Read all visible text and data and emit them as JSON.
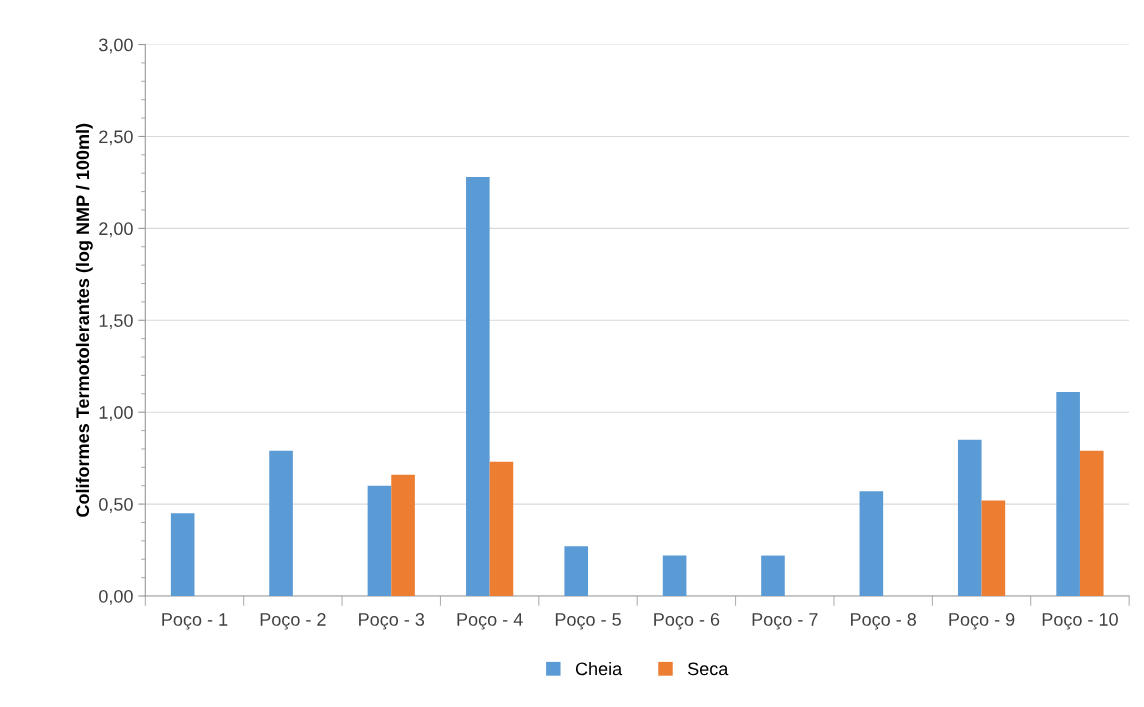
{
  "chart_data": {
    "type": "bar",
    "ylabel": "Coliformes Termotolerantes (log NMP / 100ml)",
    "categories": [
      "Poço - 1",
      "Poço - 2",
      "Poço - 3",
      "Poço - 4",
      "Poço - 5",
      "Poço - 6",
      "Poço - 7",
      "Poço - 8",
      "Poço - 9",
      "Poço - 10"
    ],
    "series": [
      {
        "name": "Cheia",
        "color": "#5b9bd5",
        "values": [
          0.45,
          0.79,
          0.6,
          2.28,
          0.27,
          0.22,
          0.22,
          0.57,
          0.85,
          1.11
        ]
      },
      {
        "name": "Seca",
        "color": "#ed7d31",
        "values": [
          null,
          null,
          0.66,
          0.73,
          null,
          null,
          null,
          null,
          0.52,
          0.79
        ]
      }
    ],
    "ylim": [
      0,
      3
    ],
    "yticks": [
      {
        "value": 0,
        "label": "0,00"
      },
      {
        "value": 0.5,
        "label": "0,50"
      },
      {
        "value": 1,
        "label": "1,00"
      },
      {
        "value": 1.5,
        "label": "1,50"
      },
      {
        "value": 2,
        "label": "2,00"
      },
      {
        "value": 2.5,
        "label": "2,50"
      },
      {
        "value": 3,
        "label": "3,00"
      }
    ],
    "grid": "y",
    "legend": "bottom"
  }
}
